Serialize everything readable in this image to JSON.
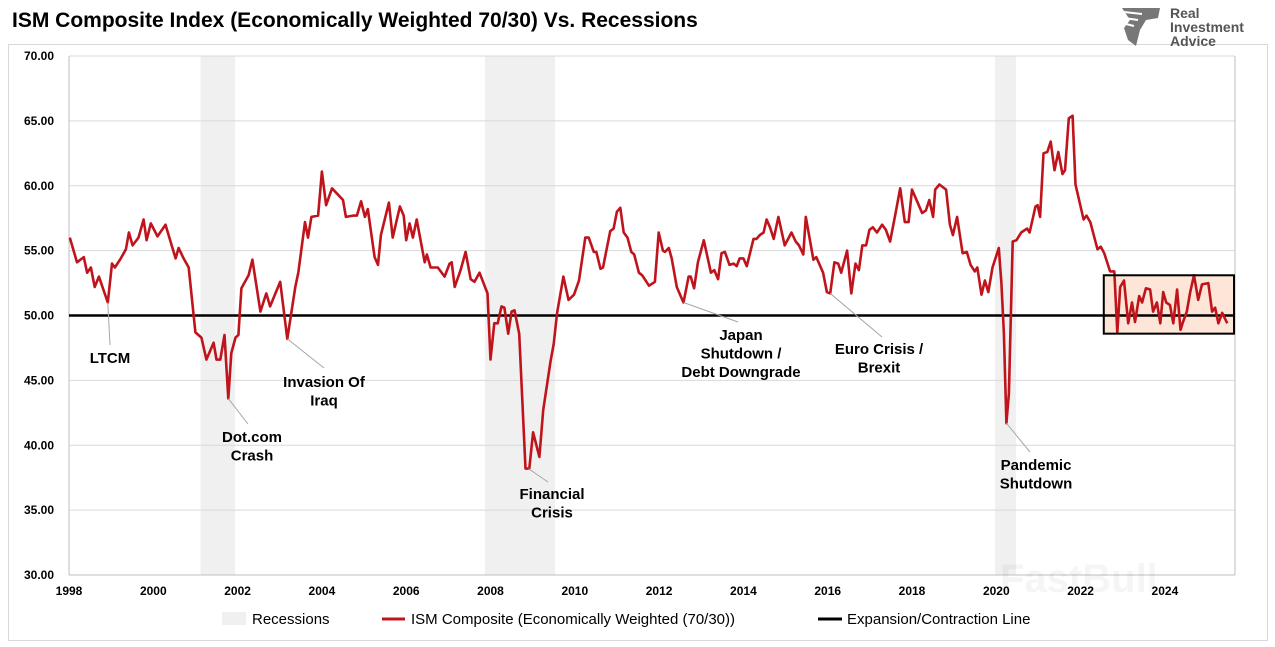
{
  "title": "ISM Composite Index (Economically Weighted 70/30) Vs. Recessions",
  "logo": {
    "lines": [
      "Real",
      "Investment",
      "Advice"
    ],
    "icon": "eagle-head-icon"
  },
  "watermark": "FastBull",
  "legend": {
    "recessions": "Recessions",
    "ism": "ISM Composite (Economically Weighted (70/30))",
    "line": "Expansion/Contraction Line"
  },
  "colors": {
    "ism": "#c0141c",
    "recession": "#f0f0f0",
    "threshold": "#000000",
    "highlight": "#fde6d8",
    "grid": "#d9d9d9"
  },
  "chart_data": {
    "type": "line",
    "title": "ISM Composite Index (Economically Weighted 70/30) Vs. Recessions",
    "xlabel": "",
    "ylabel": "",
    "xlim": [
      1998,
      2025.64
    ],
    "ylim": [
      30,
      70
    ],
    "grid": true,
    "legend_placement": "bottom",
    "x_ticks": [
      "1998",
      "2000",
      "2002",
      "2004",
      "2006",
      "2008",
      "2010",
      "2012",
      "2014",
      "2016",
      "2018",
      "2020",
      "2022",
      "2024"
    ],
    "y_ticks": [
      "30.00",
      "35.00",
      "40.00",
      "45.00",
      "50.00",
      "55.00",
      "60.00",
      "65.00",
      "70.00"
    ],
    "threshold": 50,
    "recessions": [
      [
        2001.12,
        2001.94
      ],
      [
        2007.87,
        2009.53
      ],
      [
        2019.97,
        2020.47
      ]
    ],
    "highlight_box": {
      "x": [
        2022.55,
        2025.64
      ],
      "y": [
        48.6,
        53.1
      ]
    },
    "annotations": [
      {
        "lines": [
          "LTCM"
        ],
        "point": [
          1998.92,
          51.0
        ]
      },
      {
        "lines": [
          "Dot.com",
          "Crash"
        ],
        "point": [
          2001.78,
          43.6
        ]
      },
      {
        "lines": [
          "Invasion Of",
          "Iraq"
        ],
        "point": [
          2003.18,
          48.2
        ]
      },
      {
        "lines": [
          "Financial",
          "Crisis"
        ],
        "point": [
          2008.9,
          38.2
        ]
      },
      {
        "lines": [
          "Japan",
          "Shutdown /",
          "Debt Downgrade"
        ],
        "point": [
          2012.58,
          51.0
        ]
      },
      {
        "lines": [
          "Euro Crisis /",
          "Brexit"
        ],
        "point": [
          2016.06,
          51.7
        ]
      },
      {
        "lines": [
          "Pandemic",
          "Shutdown"
        ],
        "point": [
          2020.24,
          41.7
        ]
      }
    ],
    "series": [
      {
        "name": "ISM Composite (Economically Weighted (70/30))",
        "points": [
          [
            1998.02,
            56.0
          ],
          [
            1998.19,
            54.1
          ],
          [
            1998.35,
            54.5
          ],
          [
            1998.43,
            53.3
          ],
          [
            1998.52,
            53.7
          ],
          [
            1998.61,
            52.2
          ],
          [
            1998.71,
            53.0
          ],
          [
            1998.92,
            51.0
          ],
          [
            1999.02,
            54.0
          ],
          [
            1999.09,
            53.7
          ],
          [
            1999.23,
            54.4
          ],
          [
            1999.35,
            55.1
          ],
          [
            1999.42,
            56.4
          ],
          [
            1999.51,
            55.4
          ],
          [
            1999.65,
            56.0
          ],
          [
            1999.77,
            57.4
          ],
          [
            1999.84,
            55.8
          ],
          [
            1999.94,
            57.1
          ],
          [
            2000.1,
            56.1
          ],
          [
            2000.29,
            57.0
          ],
          [
            2000.53,
            54.4
          ],
          [
            2000.6,
            55.2
          ],
          [
            2000.72,
            54.4
          ],
          [
            2000.84,
            53.7
          ],
          [
            2001.0,
            48.7
          ],
          [
            2001.14,
            48.3
          ],
          [
            2001.26,
            46.6
          ],
          [
            2001.43,
            47.9
          ],
          [
            2001.5,
            46.6
          ],
          [
            2001.59,
            46.6
          ],
          [
            2001.69,
            48.5
          ],
          [
            2001.78,
            43.6
          ],
          [
            2001.85,
            47.1
          ],
          [
            2001.95,
            48.3
          ],
          [
            2002.02,
            48.5
          ],
          [
            2002.09,
            52.1
          ],
          [
            2002.26,
            53.1
          ],
          [
            2002.35,
            54.3
          ],
          [
            2002.54,
            50.3
          ],
          [
            2002.68,
            51.7
          ],
          [
            2002.77,
            50.7
          ],
          [
            2003.01,
            52.6
          ],
          [
            2003.18,
            48.2
          ],
          [
            2003.37,
            52.2
          ],
          [
            2003.44,
            53.3
          ],
          [
            2003.6,
            57.2
          ],
          [
            2003.67,
            56.0
          ],
          [
            2003.75,
            57.6
          ],
          [
            2003.91,
            57.7
          ],
          [
            2004.0,
            61.1
          ],
          [
            2004.1,
            58.5
          ],
          [
            2004.24,
            59.8
          ],
          [
            2004.5,
            58.9
          ],
          [
            2004.57,
            57.6
          ],
          [
            2004.74,
            57.7
          ],
          [
            2004.83,
            57.7
          ],
          [
            2004.93,
            58.8
          ],
          [
            2005.02,
            57.6
          ],
          [
            2005.09,
            58.2
          ],
          [
            2005.25,
            54.5
          ],
          [
            2005.33,
            53.9
          ],
          [
            2005.4,
            56.2
          ],
          [
            2005.59,
            58.7
          ],
          [
            2005.68,
            56.0
          ],
          [
            2005.85,
            58.4
          ],
          [
            2005.94,
            57.7
          ],
          [
            2006.0,
            55.8
          ],
          [
            2006.08,
            57.1
          ],
          [
            2006.16,
            56.0
          ],
          [
            2006.25,
            57.4
          ],
          [
            2006.44,
            54.1
          ],
          [
            2006.49,
            54.7
          ],
          [
            2006.58,
            53.7
          ],
          [
            2006.75,
            53.7
          ],
          [
            2006.91,
            53.0
          ],
          [
            2007.03,
            54.0
          ],
          [
            2007.08,
            54.1
          ],
          [
            2007.15,
            52.2
          ],
          [
            2007.29,
            53.5
          ],
          [
            2007.41,
            54.9
          ],
          [
            2007.53,
            52.8
          ],
          [
            2007.62,
            52.6
          ],
          [
            2007.74,
            53.3
          ],
          [
            2007.93,
            51.7
          ],
          [
            2008.0,
            46.6
          ],
          [
            2008.09,
            49.4
          ],
          [
            2008.17,
            49.4
          ],
          [
            2008.26,
            50.7
          ],
          [
            2008.33,
            50.6
          ],
          [
            2008.42,
            48.6
          ],
          [
            2008.5,
            50.3
          ],
          [
            2008.57,
            50.4
          ],
          [
            2008.68,
            48.6
          ],
          [
            2008.83,
            38.2
          ],
          [
            2008.92,
            38.2
          ],
          [
            2009.01,
            41.0
          ],
          [
            2009.16,
            39.1
          ],
          [
            2009.25,
            42.7
          ],
          [
            2009.42,
            46.4
          ],
          [
            2009.5,
            47.8
          ],
          [
            2009.58,
            50.2
          ],
          [
            2009.73,
            53.0
          ],
          [
            2009.85,
            51.2
          ],
          [
            2009.98,
            51.6
          ],
          [
            2010.1,
            52.7
          ],
          [
            2010.25,
            56.0
          ],
          [
            2010.33,
            56.0
          ],
          [
            2010.45,
            54.9
          ],
          [
            2010.51,
            54.9
          ],
          [
            2010.61,
            53.6
          ],
          [
            2010.67,
            53.7
          ],
          [
            2010.84,
            56.5
          ],
          [
            2010.92,
            56.7
          ],
          [
            2011.0,
            58.0
          ],
          [
            2011.08,
            58.3
          ],
          [
            2011.16,
            56.4
          ],
          [
            2011.25,
            56.0
          ],
          [
            2011.34,
            54.9
          ],
          [
            2011.41,
            54.7
          ],
          [
            2011.52,
            53.3
          ],
          [
            2011.6,
            53.1
          ],
          [
            2011.76,
            52.3
          ],
          [
            2011.9,
            52.6
          ],
          [
            2011.99,
            56.4
          ],
          [
            2012.09,
            55.0
          ],
          [
            2012.14,
            54.9
          ],
          [
            2012.23,
            55.2
          ],
          [
            2012.3,
            54.4
          ],
          [
            2012.42,
            52.2
          ],
          [
            2012.55,
            51.2
          ],
          [
            2012.58,
            51.0
          ],
          [
            2012.7,
            53.0
          ],
          [
            2012.75,
            53.0
          ],
          [
            2012.83,
            52.1
          ],
          [
            2012.92,
            54.1
          ],
          [
            2013.06,
            55.8
          ],
          [
            2013.23,
            53.3
          ],
          [
            2013.31,
            53.5
          ],
          [
            2013.4,
            52.8
          ],
          [
            2013.48,
            54.8
          ],
          [
            2013.56,
            54.9
          ],
          [
            2013.67,
            53.9
          ],
          [
            2013.77,
            54.0
          ],
          [
            2013.84,
            53.8
          ],
          [
            2013.91,
            54.4
          ],
          [
            2014.0,
            54.4
          ],
          [
            2014.08,
            53.8
          ],
          [
            2014.24,
            55.9
          ],
          [
            2014.31,
            55.9
          ],
          [
            2014.39,
            56.2
          ],
          [
            2014.48,
            56.4
          ],
          [
            2014.55,
            57.4
          ],
          [
            2014.63,
            56.8
          ],
          [
            2014.72,
            55.9
          ],
          [
            2014.83,
            57.6
          ],
          [
            2014.98,
            55.4
          ],
          [
            2015.14,
            56.4
          ],
          [
            2015.24,
            55.7
          ],
          [
            2015.32,
            55.4
          ],
          [
            2015.42,
            54.7
          ],
          [
            2015.48,
            57.6
          ],
          [
            2015.66,
            54.3
          ],
          [
            2015.73,
            54.5
          ],
          [
            2015.89,
            53.3
          ],
          [
            2015.98,
            51.8
          ],
          [
            2016.06,
            51.7
          ],
          [
            2016.16,
            54.1
          ],
          [
            2016.25,
            54.0
          ],
          [
            2016.32,
            53.3
          ],
          [
            2016.46,
            55.0
          ],
          [
            2016.56,
            51.7
          ],
          [
            2016.66,
            54.0
          ],
          [
            2016.74,
            53.5
          ],
          [
            2016.82,
            55.4
          ],
          [
            2016.91,
            55.4
          ],
          [
            2016.99,
            56.6
          ],
          [
            2017.07,
            56.8
          ],
          [
            2017.17,
            56.4
          ],
          [
            2017.29,
            57.0
          ],
          [
            2017.38,
            56.6
          ],
          [
            2017.48,
            55.7
          ],
          [
            2017.6,
            57.7
          ],
          [
            2017.72,
            59.8
          ],
          [
            2017.83,
            57.2
          ],
          [
            2017.92,
            57.2
          ],
          [
            2018.0,
            59.7
          ],
          [
            2018.12,
            58.8
          ],
          [
            2018.24,
            57.9
          ],
          [
            2018.33,
            58.1
          ],
          [
            2018.41,
            58.9
          ],
          [
            2018.5,
            57.6
          ],
          [
            2018.55,
            59.7
          ],
          [
            2018.65,
            60.1
          ],
          [
            2018.81,
            59.7
          ],
          [
            2018.9,
            57.0
          ],
          [
            2018.97,
            56.2
          ],
          [
            2019.07,
            57.6
          ],
          [
            2019.2,
            54.8
          ],
          [
            2019.3,
            54.9
          ],
          [
            2019.39,
            53.9
          ],
          [
            2019.49,
            53.4
          ],
          [
            2019.55,
            53.7
          ],
          [
            2019.65,
            51.6
          ],
          [
            2019.73,
            52.7
          ],
          [
            2019.81,
            51.8
          ],
          [
            2019.91,
            53.7
          ],
          [
            2020.06,
            55.2
          ],
          [
            2020.12,
            52.5
          ],
          [
            2020.18,
            48.6
          ],
          [
            2020.24,
            41.7
          ],
          [
            2020.3,
            44.0
          ],
          [
            2020.39,
            55.7
          ],
          [
            2020.48,
            55.8
          ],
          [
            2020.59,
            56.4
          ],
          [
            2020.73,
            56.7
          ],
          [
            2020.79,
            56.4
          ],
          [
            2020.93,
            58.4
          ],
          [
            2020.98,
            58.5
          ],
          [
            2021.04,
            57.6
          ],
          [
            2021.12,
            62.5
          ],
          [
            2021.21,
            62.6
          ],
          [
            2021.29,
            63.4
          ],
          [
            2021.38,
            61.2
          ],
          [
            2021.47,
            62.6
          ],
          [
            2021.57,
            60.9
          ],
          [
            2021.63,
            61.2
          ],
          [
            2021.72,
            65.2
          ],
          [
            2021.81,
            65.4
          ],
          [
            2021.88,
            60.1
          ],
          [
            2022.07,
            57.4
          ],
          [
            2022.14,
            57.7
          ],
          [
            2022.23,
            57.2
          ],
          [
            2022.4,
            55.1
          ],
          [
            2022.48,
            55.3
          ],
          [
            2022.56,
            54.8
          ],
          [
            2022.7,
            53.4
          ],
          [
            2022.8,
            53.4
          ],
          [
            2022.87,
            48.7
          ],
          [
            2022.94,
            52.2
          ],
          [
            2023.03,
            52.7
          ],
          [
            2023.13,
            49.4
          ],
          [
            2023.22,
            51.0
          ],
          [
            2023.29,
            49.5
          ],
          [
            2023.39,
            51.5
          ],
          [
            2023.46,
            51.0
          ],
          [
            2023.55,
            52.1
          ],
          [
            2023.65,
            52.0
          ],
          [
            2023.72,
            50.3
          ],
          [
            2023.81,
            51.0
          ],
          [
            2023.89,
            49.4
          ],
          [
            2023.96,
            51.8
          ],
          [
            2024.03,
            51.0
          ],
          [
            2024.12,
            50.8
          ],
          [
            2024.2,
            49.4
          ],
          [
            2024.29,
            52.0
          ],
          [
            2024.37,
            48.9
          ],
          [
            2024.43,
            49.5
          ],
          [
            2024.52,
            50.3
          ],
          [
            2024.6,
            51.8
          ],
          [
            2024.69,
            53.1
          ],
          [
            2024.79,
            51.2
          ],
          [
            2024.88,
            52.4
          ],
          [
            2025.03,
            52.5
          ],
          [
            2025.12,
            50.3
          ],
          [
            2025.19,
            50.6
          ],
          [
            2025.27,
            49.4
          ],
          [
            2025.36,
            50.2
          ],
          [
            2025.48,
            49.4
          ]
        ]
      }
    ]
  }
}
